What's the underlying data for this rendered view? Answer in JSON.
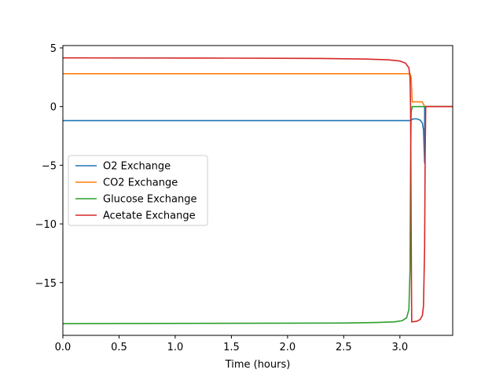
{
  "chart_data": {
    "type": "line",
    "title": "",
    "xlabel": "Time (hours)",
    "ylabel": "",
    "xlim": [
      0,
      3.47
    ],
    "ylim": [
      -19.5,
      5.2
    ],
    "xticks": [
      {
        "value": 0.0,
        "label": "0.0"
      },
      {
        "value": 0.5,
        "label": "0.5"
      },
      {
        "value": 1.0,
        "label": "1.0"
      },
      {
        "value": 1.5,
        "label": "1.5"
      },
      {
        "value": 2.0,
        "label": "2.0"
      },
      {
        "value": 2.5,
        "label": "2.5"
      },
      {
        "value": 3.0,
        "label": "3.0"
      }
    ],
    "yticks": [
      {
        "value": 5,
        "label": "5"
      },
      {
        "value": 0,
        "label": "0"
      },
      {
        "value": -5,
        "label": "−5"
      },
      {
        "value": -10,
        "label": "−10"
      },
      {
        "value": -15,
        "label": "−15"
      }
    ],
    "grid": false,
    "legend_position": "center-left",
    "series": [
      {
        "name": "O2 Exchange",
        "color": "#1f77b4",
        "points": [
          [
            0,
            -1.2
          ],
          [
            3.08,
            -1.2
          ],
          [
            3.1,
            -1.15
          ],
          [
            3.12,
            -1.05
          ],
          [
            3.15,
            -1.05
          ],
          [
            3.18,
            -1.15
          ],
          [
            3.2,
            -1.4
          ],
          [
            3.21,
            -2.0
          ],
          [
            3.22,
            -4.8
          ],
          [
            3.22,
            0
          ],
          [
            3.47,
            0
          ]
        ]
      },
      {
        "name": "CO2 Exchange",
        "color": "#ff7f0e",
        "points": [
          [
            0,
            2.8
          ],
          [
            3.09,
            2.8
          ],
          [
            3.1,
            2.5
          ],
          [
            3.11,
            0.4
          ],
          [
            3.2,
            0.4
          ],
          [
            3.22,
            0
          ],
          [
            3.47,
            0
          ]
        ]
      },
      {
        "name": "Glucose Exchange",
        "color": "#2ca02c",
        "points": [
          [
            0,
            -18.5
          ],
          [
            2.5,
            -18.45
          ],
          [
            2.8,
            -18.4
          ],
          [
            2.95,
            -18.35
          ],
          [
            3.02,
            -18.25
          ],
          [
            3.06,
            -18.0
          ],
          [
            3.08,
            -17.3
          ],
          [
            3.09,
            -14.0
          ],
          [
            3.095,
            -5.0
          ],
          [
            3.1,
            -0.5
          ],
          [
            3.11,
            0
          ],
          [
            3.47,
            0
          ]
        ]
      },
      {
        "name": "Acetate Exchange",
        "color": "#d62728",
        "points": [
          [
            0,
            4.15
          ],
          [
            1.5,
            4.13
          ],
          [
            2.3,
            4.1
          ],
          [
            2.7,
            4.05
          ],
          [
            2.9,
            3.98
          ],
          [
            3.0,
            3.88
          ],
          [
            3.05,
            3.7
          ],
          [
            3.08,
            3.3
          ],
          [
            3.09,
            2.5
          ],
          [
            3.095,
            0.0
          ],
          [
            3.1,
            -10.0
          ],
          [
            3.105,
            -18.35
          ],
          [
            3.15,
            -18.3
          ],
          [
            3.18,
            -18.15
          ],
          [
            3.2,
            -17.8
          ],
          [
            3.21,
            -17.0
          ],
          [
            3.22,
            -12.0
          ],
          [
            3.225,
            -4.0
          ],
          [
            3.23,
            0
          ],
          [
            3.47,
            0
          ]
        ]
      }
    ]
  }
}
